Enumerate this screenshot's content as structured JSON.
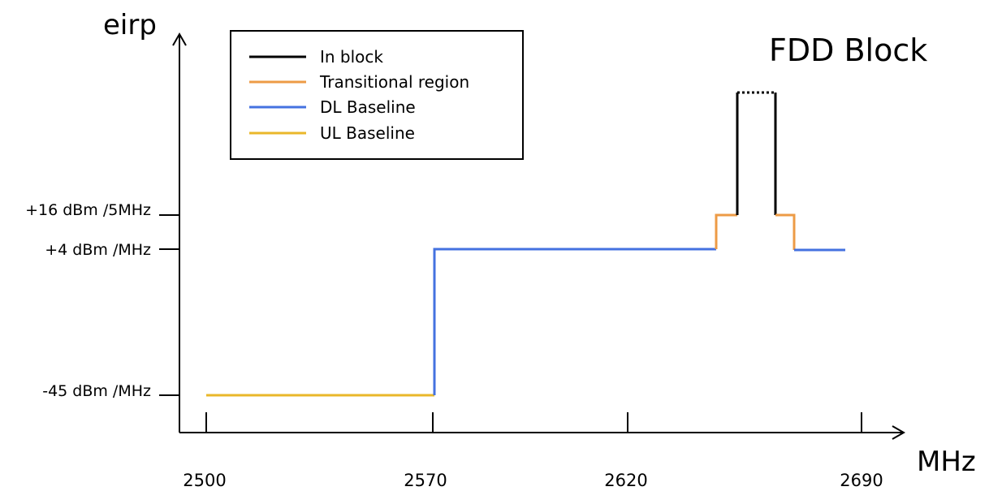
{
  "title": "FDD Block",
  "y_axis_label": "eirp",
  "x_axis_label": "MHz",
  "legend": [
    {
      "label": "In block",
      "color": "#000000"
    },
    {
      "label": "Transitional region",
      "color": "#ED9B46"
    },
    {
      "label": "DL Baseline",
      "color": "#4472E0"
    },
    {
      "label": "UL Baseline",
      "color": "#EAB72A"
    }
  ],
  "y_ticks": [
    {
      "label": "+16 dBm /5MHz"
    },
    {
      "label": "+4 dBm /MHz"
    },
    {
      "label": "-45 dBm /MHz"
    }
  ],
  "x_ticks": [
    {
      "label": "2500"
    },
    {
      "label": "2570"
    },
    {
      "label": "2620"
    },
    {
      "label": "2690"
    }
  ]
}
